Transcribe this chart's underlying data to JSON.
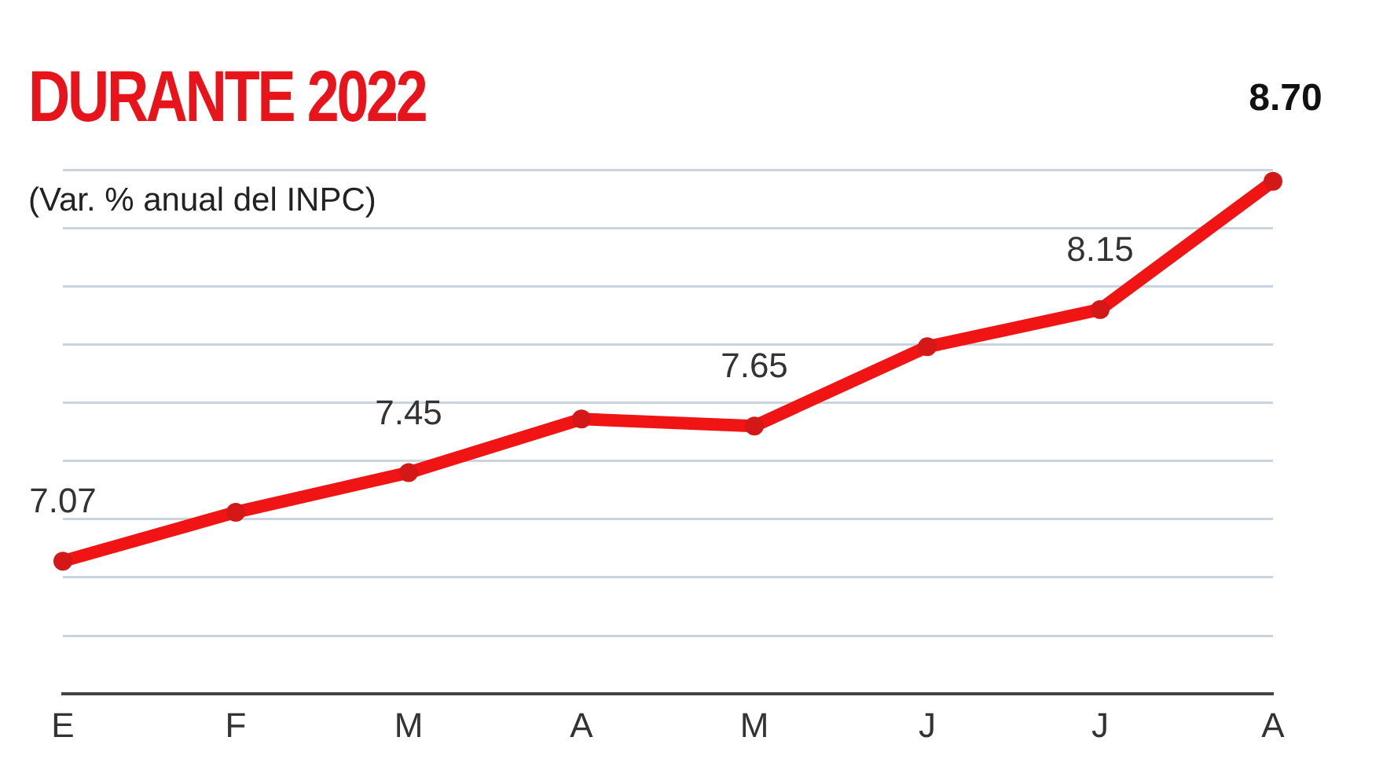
{
  "chart_data": {
    "type": "line",
    "title": "DURANTE 2022",
    "subtitle": "(Var. % anual del INPC)",
    "categories": [
      "E",
      "F",
      "M",
      "A",
      "M",
      "J",
      "J",
      "A"
    ],
    "series": [
      {
        "color": "#f01414",
        "values": [
          7.07,
          7.28,
          7.45,
          7.68,
          7.65,
          7.99,
          8.15,
          8.7
        ],
        "value_labels": [
          "7.07",
          null,
          "7.45",
          null,
          "7.65",
          null,
          "8.15",
          "8.70"
        ]
      }
    ],
    "ylim": [
      6.5,
      8.75
    ],
    "yticks": [
      {
        "value": 6.75,
        "label": null
      },
      {
        "value": 7.0,
        "label": null
      },
      {
        "value": 7.25,
        "label": null
      },
      {
        "value": 7.5,
        "label": null
      },
      {
        "value": 7.75,
        "label": null
      },
      {
        "value": 8.0,
        "label": null
      },
      {
        "value": 8.25,
        "label": null
      },
      {
        "value": 8.5,
        "label": null
      },
      {
        "value": 8.75,
        "label": null
      }
    ],
    "grid": "y",
    "tick_labels": "x",
    "marker": "circle",
    "line_style": "solid"
  }
}
